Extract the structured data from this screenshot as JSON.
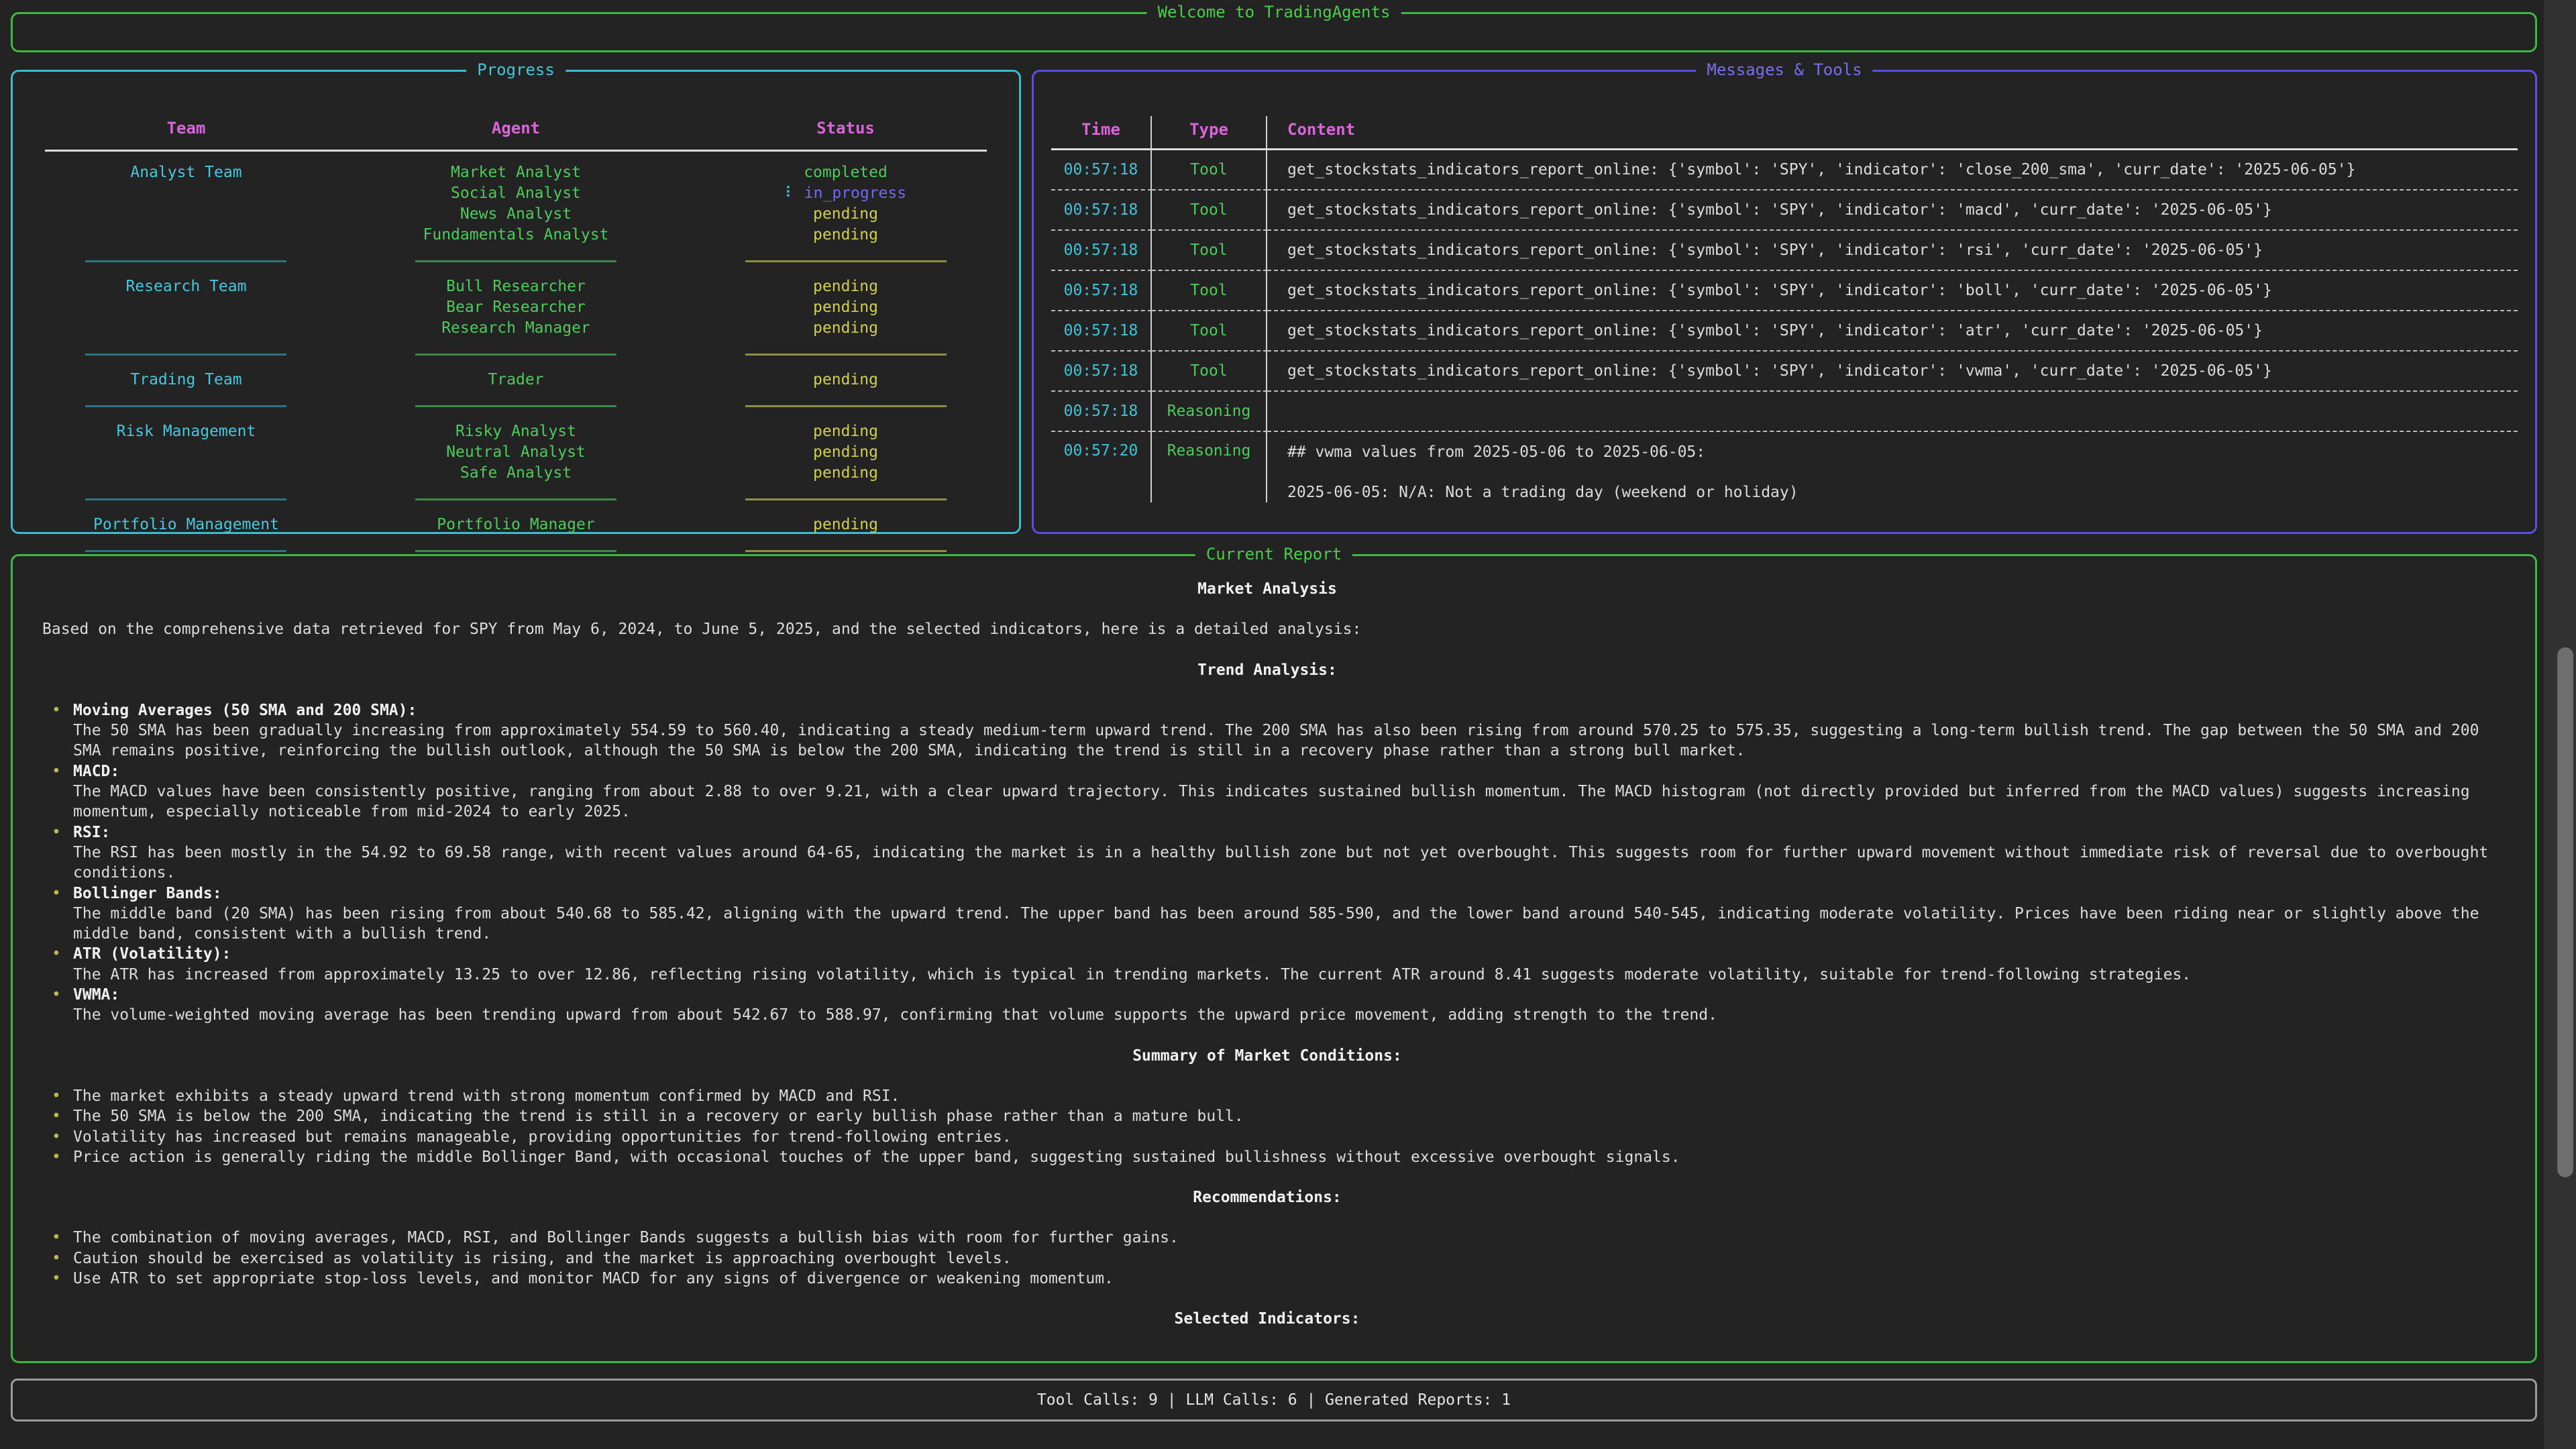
{
  "banner": {
    "title": "Welcome to TradingAgents"
  },
  "progress": {
    "title": "Progress",
    "columns": [
      "Team",
      "Agent",
      "Status"
    ],
    "spinner_glyph": "⠇",
    "teams": [
      {
        "team": "Analyst Team",
        "agents": [
          {
            "name": "Market Analyst",
            "status": "completed"
          },
          {
            "name": "Social Analyst",
            "status": "in_progress"
          },
          {
            "name": "News Analyst",
            "status": "pending"
          },
          {
            "name": "Fundamentals Analyst",
            "status": "pending"
          }
        ]
      },
      {
        "team": "Research Team",
        "agents": [
          {
            "name": "Bull Researcher",
            "status": "pending"
          },
          {
            "name": "Bear Researcher",
            "status": "pending"
          },
          {
            "name": "Research Manager",
            "status": "pending"
          }
        ]
      },
      {
        "team": "Trading Team",
        "agents": [
          {
            "name": "Trader",
            "status": "pending"
          }
        ]
      },
      {
        "team": "Risk Management",
        "agents": [
          {
            "name": "Risky Analyst",
            "status": "pending"
          },
          {
            "name": "Neutral Analyst",
            "status": "pending"
          },
          {
            "name": "Safe Analyst",
            "status": "pending"
          }
        ]
      },
      {
        "team": "Portfolio Management",
        "agents": [
          {
            "name": "Portfolio Manager",
            "status": "pending"
          }
        ]
      }
    ]
  },
  "messages": {
    "title": "Messages & Tools",
    "columns": [
      "Time",
      "Type",
      "Content"
    ],
    "rows": [
      {
        "time": "00:57:18",
        "type": "Tool",
        "content": "get_stockstats_indicators_report_online: {'symbol': 'SPY', 'indicator': 'close_200_sma', 'curr_date': '2025-06-05'}"
      },
      {
        "time": "00:57:18",
        "type": "Tool",
        "content": "get_stockstats_indicators_report_online: {'symbol': 'SPY', 'indicator': 'macd', 'curr_date': '2025-06-05'}"
      },
      {
        "time": "00:57:18",
        "type": "Tool",
        "content": "get_stockstats_indicators_report_online: {'symbol': 'SPY', 'indicator': 'rsi', 'curr_date': '2025-06-05'}"
      },
      {
        "time": "00:57:18",
        "type": "Tool",
        "content": "get_stockstats_indicators_report_online: {'symbol': 'SPY', 'indicator': 'boll', 'curr_date': '2025-06-05'}"
      },
      {
        "time": "00:57:18",
        "type": "Tool",
        "content": "get_stockstats_indicators_report_online: {'symbol': 'SPY', 'indicator': 'atr', 'curr_date': '2025-06-05'}"
      },
      {
        "time": "00:57:18",
        "type": "Tool",
        "content": "get_stockstats_indicators_report_online: {'symbol': 'SPY', 'indicator': 'vwma', 'curr_date': '2025-06-05'}"
      },
      {
        "time": "00:57:18",
        "type": "Reasoning",
        "content": ""
      },
      {
        "time": "00:57:20",
        "type": "Reasoning",
        "content_lines": [
          "## vwma values from 2025-05-06 to 2025-06-05:",
          "",
          "2025-06-05: N/A: Not a trading day (weekend or holiday)"
        ]
      }
    ]
  },
  "report": {
    "title": "Current Report",
    "heading": "Market Analysis",
    "intro": "Based on the comprehensive data retrieved for SPY from May 6, 2024, to June 5, 2025, and the selected indicators, here is a detailed analysis:",
    "sections": [
      {
        "heading": "Trend Analysis:",
        "bullets": [
          {
            "label": "Moving Averages (50 SMA and 200 SMA):",
            "text": "The 50 SMA has been gradually increasing from approximately 554.59 to 560.40, indicating a steady medium-term upward trend. The 200 SMA has also been rising from around 570.25 to 575.35, suggesting a long-term bullish trend. The gap between the 50 SMA and 200 SMA remains positive, reinforcing the bullish outlook, although the 50 SMA is below the 200 SMA, indicating the trend is still in a recovery phase rather than a strong bull market."
          },
          {
            "label": "MACD:",
            "text": "The MACD values have been consistently positive, ranging from about 2.88 to over 9.21, with a clear upward trajectory. This indicates sustained bullish momentum. The MACD histogram (not directly provided but inferred from the MACD values) suggests increasing momentum, especially noticeable from mid-2024 to early 2025."
          },
          {
            "label": "RSI:",
            "text": "The RSI has been mostly in the 54.92 to 69.58 range, with recent values around 64-65, indicating the market is in a healthy bullish zone but not yet overbought. This suggests room for further upward movement without immediate risk of reversal due to overbought conditions."
          },
          {
            "label": "Bollinger Bands:",
            "text": "The middle band (20 SMA) has been rising from about 540.68 to 585.42, aligning with the upward trend. The upper band has been around 585-590, and the lower band around 540-545, indicating moderate volatility. Prices have been riding near or slightly above the middle band, consistent with a bullish trend."
          },
          {
            "label": "ATR (Volatility):",
            "text": "The ATR has increased from approximately 13.25 to over 12.86, reflecting rising volatility, which is typical in trending markets. The current ATR around 8.41 suggests moderate volatility, suitable for trend-following strategies."
          },
          {
            "label": "VWMA:",
            "text": "The volume-weighted moving average has been trending upward from about 542.67 to 588.97, confirming that volume supports the upward price movement, adding strength to the trend."
          }
        ]
      },
      {
        "heading": "Summary of Market Conditions:",
        "bullets": [
          {
            "text": "The market exhibits a steady upward trend with strong momentum confirmed by MACD and RSI."
          },
          {
            "text": "The 50 SMA is below the 200 SMA, indicating the trend is still in a recovery or early bullish phase rather than a mature bull."
          },
          {
            "text": "Volatility has increased but remains manageable, providing opportunities for trend-following entries."
          },
          {
            "text": "Price action is generally riding the middle Bollinger Band, with occasional touches of the upper band, suggesting sustained bullishness without excessive overbought signals."
          }
        ]
      },
      {
        "heading": "Recommendations:",
        "bullets": [
          {
            "text": "The combination of moving averages, MACD, RSI, and Bollinger Bands suggests a bullish bias with room for further gains."
          },
          {
            "text": "Caution should be exercised as volatility is rising, and the market is approaching overbought levels."
          },
          {
            "text": "Use ATR to set appropriate stop-loss levels, and monitor MACD for any signs of divergence or weakening momentum."
          }
        ]
      },
      {
        "heading": "Selected Indicators:",
        "bullets": []
      }
    ]
  },
  "footer": {
    "tool_calls": 9,
    "llm_calls": 6,
    "generated_reports": 1,
    "text": "Tool Calls: 9 | LLM Calls: 6 | Generated Reports: 1"
  },
  "colors": {
    "background": "#232323",
    "green_accent": "#3eb83e",
    "cyan_accent": "#3bbcd0",
    "violet_accent": "#5b50e0",
    "magenta_header": "#d966d9",
    "agent_green": "#4ecb5c",
    "pending_yellow": "#cfcf52",
    "in_progress_blue": "#7468f0",
    "time_cyan": "#43c3d8",
    "bullet_olive": "#b9b94f",
    "footer_border": "#9c9c9c"
  }
}
